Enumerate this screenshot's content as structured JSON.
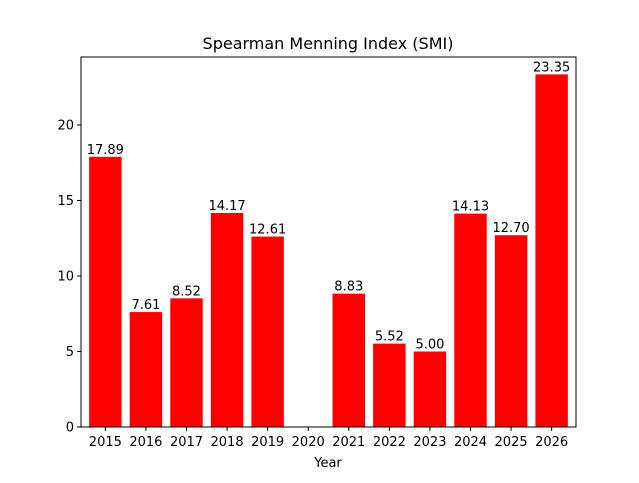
{
  "chart_data": {
    "type": "bar",
    "title": "Spearman Menning Index (SMI)",
    "xlabel": "Year",
    "ylabel": "",
    "categories": [
      "2015",
      "2016",
      "2017",
      "2018",
      "2019",
      "2020",
      "2021",
      "2022",
      "2023",
      "2024",
      "2025",
      "2026"
    ],
    "values": [
      17.89,
      7.61,
      8.52,
      14.17,
      12.61,
      null,
      8.83,
      5.52,
      5.0,
      14.13,
      12.7,
      23.35
    ],
    "data_labels": [
      "17.89",
      "7.61",
      "8.52",
      "14.17",
      "12.61",
      "",
      "8.83",
      "5.52",
      "5.00",
      "14.13",
      "12.70",
      "23.35"
    ],
    "ylim": [
      0,
      24.5
    ],
    "yticks": [
      0,
      5,
      10,
      15,
      20
    ],
    "bar_color": "#ff0000",
    "grid": false,
    "legend": "none"
  }
}
